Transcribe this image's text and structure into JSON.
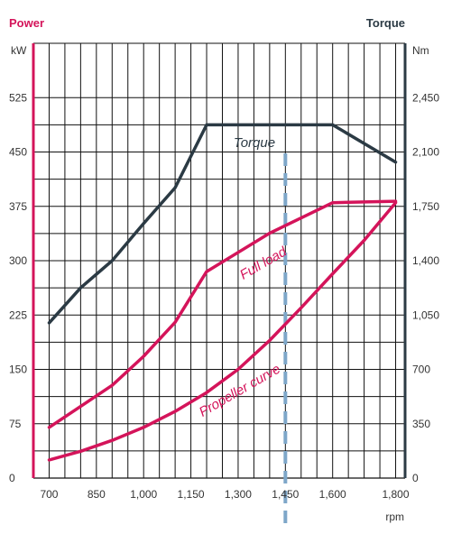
{
  "chart_data": {
    "type": "line",
    "left_title": "Power",
    "right_title": "Torque",
    "left_unit": "kW",
    "right_unit": "Nm",
    "x_unit": "rpm",
    "x_ticks": [
      "700",
      "850",
      "1,000",
      "1,150",
      "1,300",
      "1,450",
      "1,600",
      "1,800"
    ],
    "x_tick_values": [
      700,
      850,
      1000,
      1150,
      1300,
      1450,
      1600,
      1800
    ],
    "y_left_ticks": [
      "0",
      "75",
      "150",
      "225",
      "300",
      "375",
      "450",
      "525"
    ],
    "y_left_values": [
      0,
      75,
      150,
      225,
      300,
      375,
      450,
      525
    ],
    "y_right_ticks": [
      "0",
      "350",
      "700",
      "1,050",
      "1,400",
      "1,750",
      "2,100",
      "2,450"
    ],
    "y_right_values": [
      0,
      350,
      700,
      1050,
      1400,
      1750,
      2100,
      2450
    ],
    "xlim": [
      650,
      1830
    ],
    "ylim_left": [
      0,
      600
    ],
    "ylim_right": [
      0,
      2800
    ],
    "grid": true,
    "marker_rpm": 1450,
    "colors": {
      "power": "#d4145a",
      "torque": "#2b3a44",
      "marker": "#7ea7c9",
      "grid": "#111111"
    },
    "series": [
      {
        "name": "Torque",
        "axis": "right",
        "x": [
          700,
          800,
          900,
          1000,
          1100,
          1200,
          1600,
          1800
        ],
        "values": [
          1000,
          1225,
          1400,
          1640,
          1870,
          2275,
          2275,
          2035
        ]
      },
      {
        "name": "Full load",
        "axis": "left",
        "x": [
          700,
          900,
          1000,
          1100,
          1200,
          1400,
          1600,
          1800
        ],
        "values": [
          70,
          128,
          168,
          215,
          285,
          338,
          380,
          382
        ]
      },
      {
        "name": "Propeller curve",
        "axis": "left",
        "x": [
          700,
          800,
          900,
          1000,
          1100,
          1200,
          1300,
          1400,
          1500,
          1600,
          1700,
          1800
        ],
        "values": [
          25,
          37,
          52,
          70,
          92,
          118,
          150,
          190,
          235,
          282,
          328,
          380
        ]
      }
    ]
  }
}
